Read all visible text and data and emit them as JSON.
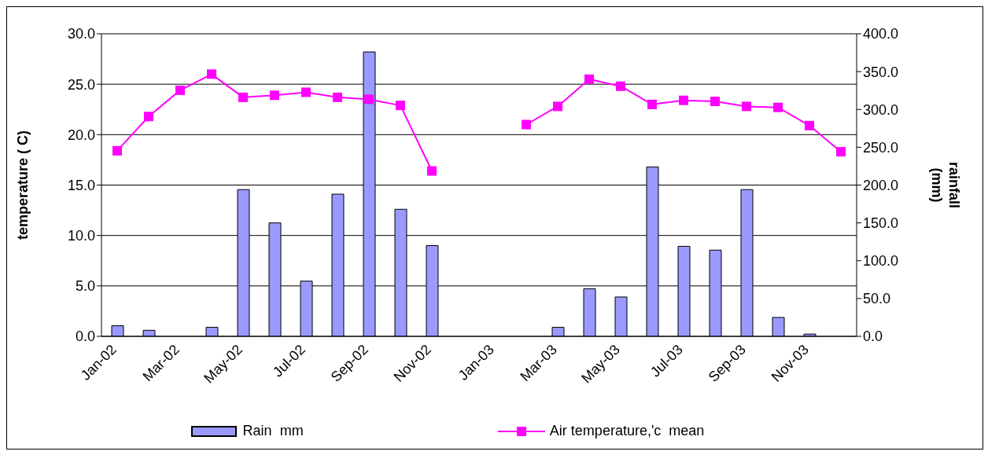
{
  "chart_data": {
    "type": "bar",
    "xlabel": null,
    "ylabel": "temperature ( C)",
    "y2label": "rainfall (mm)",
    "categories": [
      "Jan-02",
      null,
      "Mar-02",
      null,
      "May-02",
      null,
      "Jul-02",
      null,
      "Sep-02",
      null,
      "Nov-02",
      null,
      "Jan-03",
      null,
      "Mar-03",
      null,
      "May-03",
      null,
      "Jul-03",
      null,
      "Sep-03",
      null,
      "Nov-03",
      null
    ],
    "series": [
      {
        "name": "Rain  mm",
        "axis": "y2",
        "color": "#9999ff",
        "values": [
          14,
          8,
          0,
          12,
          194,
          150,
          73,
          188,
          376,
          168,
          120,
          null,
          null,
          null,
          12,
          63,
          52,
          224,
          119,
          114,
          194,
          25,
          3,
          0
        ]
      },
      {
        "name": "Air temperature,'c  mean",
        "type": "line",
        "axis": "y",
        "color": "#ff00ff",
        "marker": "square",
        "values": [
          18.4,
          21.8,
          24.4,
          26.0,
          23.7,
          23.9,
          24.2,
          23.7,
          23.5,
          22.9,
          16.4,
          null,
          null,
          21.0,
          22.8,
          25.5,
          24.8,
          23.0,
          23.4,
          23.3,
          22.8,
          22.7,
          20.9,
          18.3
        ]
      }
    ],
    "ylim": [
      0,
      30
    ],
    "yticks": [
      {
        "value": 0,
        "label": "0.0"
      },
      {
        "value": 5,
        "label": "5.0"
      },
      {
        "value": 10,
        "label": "10.0"
      },
      {
        "value": 15,
        "label": "15.0"
      },
      {
        "value": 20,
        "label": "20.0"
      },
      {
        "value": 25,
        "label": "25.0"
      },
      {
        "value": 30,
        "label": "30.0"
      }
    ],
    "y2lim": [
      0,
      400
    ],
    "y2ticks": [
      {
        "value": 0,
        "label": "0.0"
      },
      {
        "value": 50,
        "label": "50.0"
      },
      {
        "value": 100,
        "label": "100.0"
      },
      {
        "value": 150,
        "label": "150.0"
      },
      {
        "value": 200,
        "label": "200.0"
      },
      {
        "value": 250,
        "label": "250.0"
      },
      {
        "value": 300,
        "label": "300.0"
      },
      {
        "value": 350,
        "label": "350.0"
      },
      {
        "value": 400,
        "label": "400.0"
      }
    ],
    "grid": "y",
    "legend": "bottom"
  }
}
